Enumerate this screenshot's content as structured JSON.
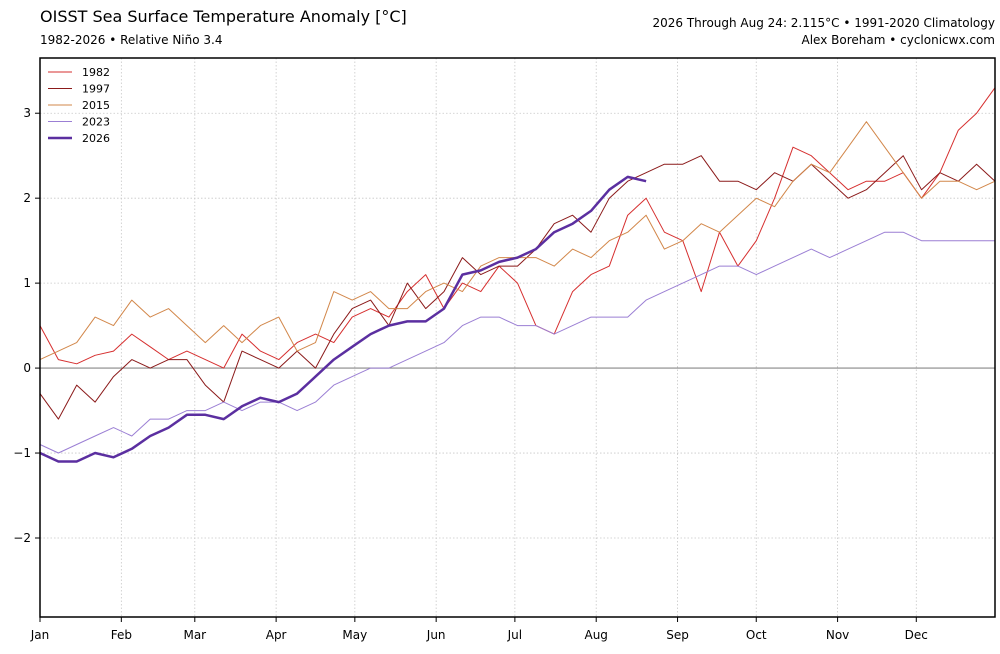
{
  "chart_data": {
    "type": "line",
    "title": "OISST Sea Surface Temperature Anomaly [°C]",
    "subtitle": "1982-2026 • Relative Niño 3.4",
    "annotations": [
      "2026 Through Aug 24: 2.115°C • 1991-2020 Climatology",
      "Alex Boreham • cyclonicwx.com"
    ],
    "x": [
      1,
      8,
      15,
      22,
      29,
      36,
      43,
      50,
      57,
      64,
      71,
      78,
      85,
      92,
      99,
      106,
      113,
      120,
      127,
      134,
      141,
      148,
      155,
      162,
      169,
      176,
      183,
      190,
      197,
      204,
      211,
      218,
      225,
      232,
      239,
      246,
      253,
      260,
      267,
      274,
      281,
      288,
      295,
      302,
      309,
      316,
      323,
      330,
      337,
      344,
      351,
      358,
      365
    ],
    "xlim": [
      1,
      365
    ],
    "xticks": [
      {
        "value": 1,
        "label": "Jan"
      },
      {
        "value": 32,
        "label": "Feb"
      },
      {
        "value": 60,
        "label": "Mar"
      },
      {
        "value": 91,
        "label": "Apr"
      },
      {
        "value": 121,
        "label": "May"
      },
      {
        "value": 152,
        "label": "Jun"
      },
      {
        "value": 182,
        "label": "Jul"
      },
      {
        "value": 213,
        "label": "Aug"
      },
      {
        "value": 244,
        "label": "Sep"
      },
      {
        "value": 274,
        "label": "Oct"
      },
      {
        "value": 305,
        "label": "Nov"
      },
      {
        "value": 335,
        "label": "Dec"
      }
    ],
    "ylim": [
      -2.93,
      3.65
    ],
    "yticks": [
      {
        "value": -2,
        "label": "−2"
      },
      {
        "value": -1,
        "label": "−1"
      },
      0,
      1,
      2,
      3
    ],
    "grid": true,
    "legend": "upper left",
    "series": [
      {
        "name": "1982",
        "color": "#d62f2f",
        "width": 1,
        "values": [
          0.5,
          0.1,
          0.05,
          0.15,
          0.2,
          0.4,
          0.25,
          0.1,
          0.2,
          0.1,
          0.0,
          0.4,
          0.2,
          0.1,
          0.3,
          0.4,
          0.3,
          0.6,
          0.7,
          0.6,
          0.9,
          1.1,
          0.7,
          1.0,
          0.9,
          1.2,
          1.0,
          0.5,
          0.4,
          0.9,
          1.1,
          1.2,
          1.8,
          2.0,
          1.6,
          1.5,
          0.9,
          1.6,
          1.2,
          1.5,
          2.0,
          2.6,
          2.5,
          2.3,
          2.1,
          2.2,
          2.2,
          2.3,
          2.0,
          2.3,
          2.8,
          3.0,
          3.3
        ]
      },
      {
        "name": "1997",
        "color": "#8b1a1a",
        "width": 1,
        "values": [
          -0.3,
          -0.6,
          -0.2,
          -0.4,
          -0.1,
          0.1,
          0.0,
          0.1,
          0.1,
          -0.2,
          -0.4,
          0.2,
          0.1,
          0.0,
          0.2,
          0.0,
          0.4,
          0.7,
          0.8,
          0.5,
          1.0,
          0.7,
          0.9,
          1.3,
          1.1,
          1.2,
          1.2,
          1.4,
          1.7,
          1.8,
          1.6,
          2.0,
          2.2,
          2.3,
          2.4,
          2.4,
          2.5,
          2.2,
          2.2,
          2.1,
          2.3,
          2.2,
          2.4,
          2.2,
          2.0,
          2.1,
          2.3,
          2.5,
          2.1,
          2.3,
          2.2,
          2.4,
          2.2
        ]
      },
      {
        "name": "2015",
        "color": "#d2874a",
        "width": 1,
        "values": [
          0.1,
          0.2,
          0.3,
          0.6,
          0.5,
          0.8,
          0.6,
          0.7,
          0.5,
          0.3,
          0.5,
          0.3,
          0.5,
          0.6,
          0.2,
          0.3,
          0.9,
          0.8,
          0.9,
          0.7,
          0.7,
          0.9,
          1.0,
          0.9,
          1.2,
          1.3,
          1.3,
          1.3,
          1.2,
          1.4,
          1.3,
          1.5,
          1.6,
          1.8,
          1.4,
          1.5,
          1.7,
          1.6,
          1.8,
          2.0,
          1.9,
          2.2,
          2.4,
          2.3,
          2.6,
          2.9,
          2.6,
          2.3,
          2.0,
          2.2,
          2.2,
          2.1,
          2.2
        ]
      },
      {
        "name": "2023",
        "color": "#9b7fd4",
        "width": 1,
        "values": [
          -0.9,
          -1.0,
          -0.9,
          -0.8,
          -0.7,
          -0.8,
          -0.6,
          -0.6,
          -0.5,
          -0.5,
          -0.4,
          -0.5,
          -0.4,
          -0.4,
          -0.5,
          -0.4,
          -0.2,
          -0.1,
          0.0,
          0.0,
          0.1,
          0.2,
          0.3,
          0.5,
          0.6,
          0.6,
          0.5,
          0.5,
          0.4,
          0.5,
          0.6,
          0.6,
          0.6,
          0.8,
          0.9,
          1.0,
          1.1,
          1.2,
          1.2,
          1.1,
          1.2,
          1.3,
          1.4,
          1.3,
          1.4,
          1.5,
          1.6,
          1.6,
          1.5,
          1.5,
          1.5,
          1.5,
          1.5
        ]
      },
      {
        "name": "2026",
        "color": "#5b2fa0",
        "width": 2.5,
        "values": [
          -1.0,
          -1.1,
          -1.1,
          -1.0,
          -1.05,
          -0.95,
          -0.8,
          -0.7,
          -0.55,
          -0.55,
          -0.6,
          -0.45,
          -0.35,
          -0.4,
          -0.3,
          -0.1,
          0.1,
          0.25,
          0.4,
          0.5,
          0.55,
          0.55,
          0.7,
          1.1,
          1.15,
          1.25,
          1.3,
          1.4,
          1.6,
          1.7,
          1.85,
          2.1,
          2.25,
          2.2,
          null,
          null,
          null,
          null,
          null,
          null,
          null,
          null,
          null,
          null,
          null,
          null,
          null,
          null,
          null,
          null,
          null,
          null,
          null
        ]
      }
    ]
  }
}
